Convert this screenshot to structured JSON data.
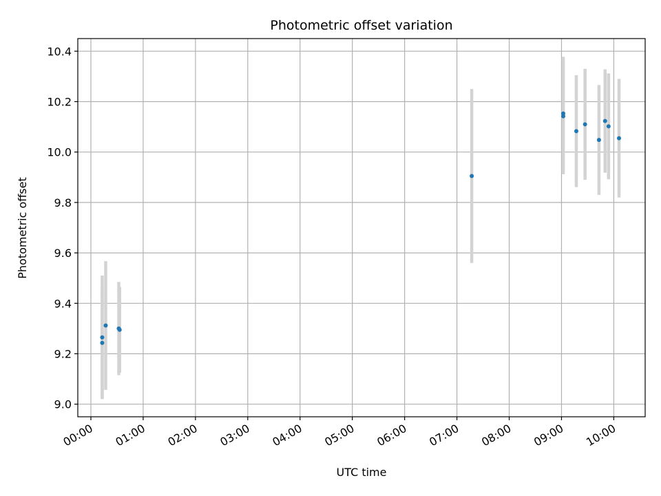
{
  "chart_data": {
    "type": "scatter",
    "title": "Photometric offset variation",
    "xlabel": "UTC time",
    "ylabel": "Photometric offset",
    "grid": true,
    "x_unit": "hours (UTC)",
    "xlim": [
      "-0.25h",
      "10.6h"
    ],
    "ylim": [
      8.95,
      10.45
    ],
    "x_ticks": [
      "00:00",
      "01:00",
      "02:00",
      "03:00",
      "04:00",
      "05:00",
      "06:00",
      "07:00",
      "08:00",
      "09:00",
      "10:00"
    ],
    "y_ticks": [
      "9.0",
      "9.2",
      "9.4",
      "9.6",
      "9.8",
      "10.0",
      "10.2",
      "10.4"
    ],
    "colors": {
      "point": "#1f77b4",
      "errorbar": "#d3d3d3",
      "grid": "#b0b0b0"
    },
    "series": [
      {
        "points": [
          {
            "time": "00:13",
            "y": 9.265,
            "err": 0.245
          },
          {
            "time": "00:13",
            "y": 9.243,
            "err": 0.22
          },
          {
            "time": "00:17",
            "y": 9.312,
            "err": 0.255
          },
          {
            "time": "00:32",
            "y": 9.3,
            "err": 0.185
          },
          {
            "time": "00:33",
            "y": 9.295,
            "err": 0.17
          },
          {
            "time": "07:17",
            "y": 9.905,
            "err": 0.345
          },
          {
            "time": "09:02",
            "y": 10.153,
            "err": 0.225
          },
          {
            "time": "09:02",
            "y": 10.142,
            "err": 0.23
          },
          {
            "time": "09:17",
            "y": 10.083,
            "err": 0.222
          },
          {
            "time": "09:27",
            "y": 10.11,
            "err": 0.22
          },
          {
            "time": "09:43",
            "y": 10.048,
            "err": 0.218
          },
          {
            "time": "09:50",
            "y": 10.123,
            "err": 0.205
          },
          {
            "time": "09:54",
            "y": 10.102,
            "err": 0.21
          },
          {
            "time": "10:06",
            "y": 10.055,
            "err": 0.235
          }
        ]
      }
    ]
  }
}
